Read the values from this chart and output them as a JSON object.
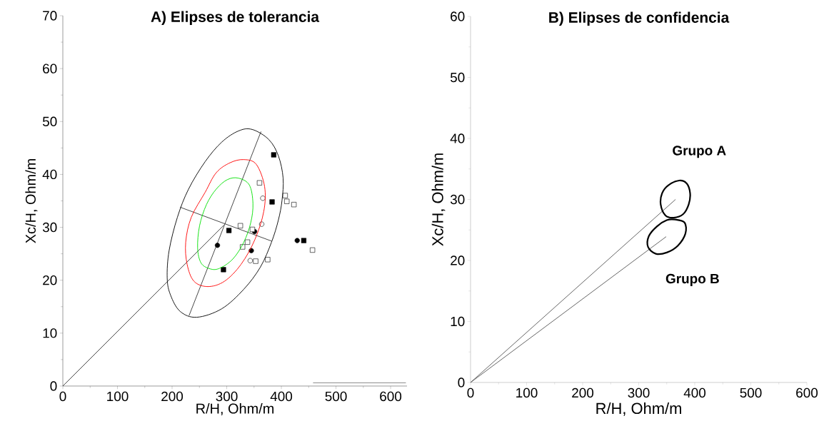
{
  "chart_data": [
    {
      "type": "scatter",
      "title": "A) Elipses de tolerancia",
      "xlabel": "R/H, Ohm/m",
      "ylabel": "Xc/H, Ohm/m",
      "xlim": [
        0,
        630
      ],
      "ylim": [
        0,
        70
      ],
      "xticks": [
        0,
        100,
        200,
        300,
        400,
        500,
        600
      ],
      "yticks": [
        0,
        10,
        20,
        30,
        40,
        50,
        60,
        70
      ],
      "grid": false,
      "series": [
        {
          "type": "line",
          "color": "#333333",
          "x": [
            231,
            362.7
          ],
          "values": [
            13.3,
            48.1
          ]
        },
        {
          "type": "line",
          "color": "#333333",
          "x": [
            214.8,
            382
          ],
          "values": [
            33.8,
            27.4
          ]
        },
        {
          "type": "line",
          "color": "#333333",
          "x": [
            0,
            294.8
          ],
          "values": [
            0,
            30.4
          ]
        },
        {
          "type": "line",
          "color": "#808080",
          "x": [
            458,
            628
          ],
          "values": [
            0.6,
            0.6
          ]
        },
        {
          "type": "scatter",
          "marker": "square",
          "color": "#000000",
          "x": [
            304,
            386,
            383,
            294,
            441
          ],
          "values": [
            29.4,
            43.7,
            34.8,
            22.0,
            27.5
          ]
        },
        {
          "type": "scatter",
          "marker": "circle",
          "color": "#000000",
          "x": [
            283,
            351,
            345,
            429
          ],
          "values": [
            26.6,
            29.2,
            25.6,
            27.5
          ]
        },
        {
          "type": "scatter",
          "marker": "square",
          "color": "#ffffff",
          "x": [
            360,
            407,
            410,
            423,
            325,
            347,
            338,
            329,
            353,
            375,
            457
          ],
          "values": [
            38.4,
            36.0,
            34.9,
            34.3,
            30.3,
            29.6,
            27.2,
            26.3,
            23.6,
            23.9,
            25.7
          ]
        },
        {
          "type": "scatter",
          "marker": "circle",
          "color": "#ffffff",
          "x": [
            366,
            364,
            343
          ],
          "values": [
            35.5,
            30.6,
            23.7
          ]
        }
      ]
    },
    {
      "type": "scatter",
      "title": "B) Elipses de confidencia",
      "xlabel": "R/H, Ohm/m",
      "ylabel": "Xc/H, Ohm/m",
      "xlim": [
        0,
        600
      ],
      "ylim": [
        0,
        60
      ],
      "xticks": [
        0,
        100,
        200,
        300,
        400,
        500,
        600
      ],
      "yticks": [
        0,
        10,
        20,
        30,
        40,
        50,
        60
      ],
      "grid": false,
      "annotations": [
        "Grupo A",
        "Grupo B"
      ],
      "series": [
        {
          "type": "line",
          "color": "#555555",
          "x": [
            0,
            365.7
          ],
          "values": [
            0,
            30.0
          ]
        },
        {
          "type": "line",
          "color": "#555555",
          "x": [
            0,
            349.0
          ],
          "values": [
            0,
            23.9
          ]
        }
      ]
    }
  ]
}
